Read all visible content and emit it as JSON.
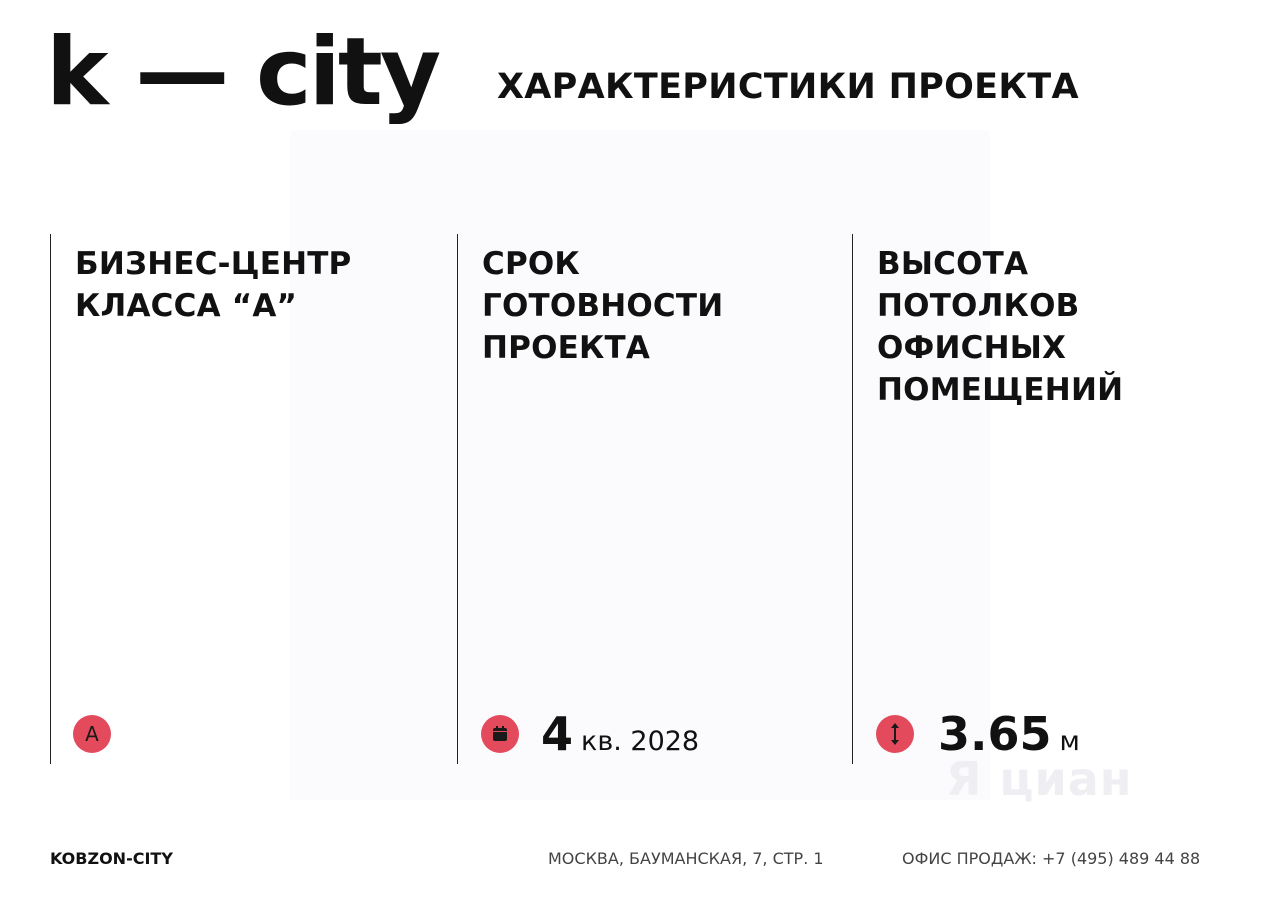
{
  "header": {
    "logo": "k — city",
    "title": "ХАРАКТЕРИСТИКИ ПРОЕКТА"
  },
  "columns": [
    {
      "title_lines": [
        "БИЗНЕС-ЦЕНТР",
        "КЛАССА “А”"
      ],
      "badge_text": "A",
      "icon": "class-a-icon"
    },
    {
      "title_lines": [
        "СРОК",
        "ГОТОВНОСТИ",
        "ПРОЕКТА"
      ],
      "icon": "calendar-icon",
      "value": "4",
      "unit": "кв. 2028"
    },
    {
      "title_lines": [
        "ВЫСОТА",
        "ПОТОЛКОВ",
        "ОФИСНЫХ",
        "ПОМЕЩЕНИЙ"
      ],
      "icon": "vertical-arrows-icon",
      "value": "3.65",
      "unit": "м"
    }
  ],
  "watermark": "Я циан",
  "footer": {
    "brand": "KOBZON-CITY",
    "address": "МОСКВА, БАУМАНСКАЯ, 7, СТР. 1",
    "phone": "ОФИС ПРОДАЖ: +7 (495) 489 44 88"
  },
  "colors": {
    "accent": "#e34a5c",
    "text": "#111111"
  }
}
